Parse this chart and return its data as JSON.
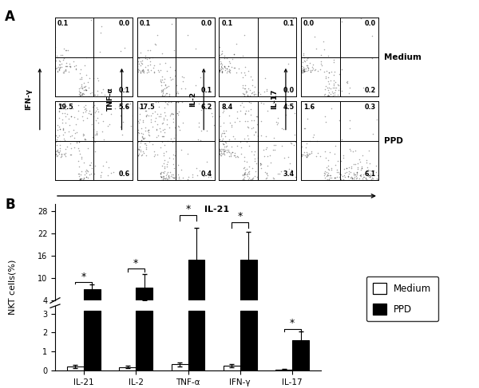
{
  "panel_A": {
    "rows": [
      "Medium",
      "PPD"
    ],
    "cols": [
      "IFN-y",
      "TNF-a",
      "IL-2",
      "IL-17"
    ],
    "col_ylabels": [
      "IFN-γ",
      "TNF-α",
      "IL-2",
      "IL-17"
    ],
    "quadrant_values": {
      "Medium": {
        "IFN-y": [
          [
            "0.1",
            "0.0"
          ],
          [
            "",
            "0.1"
          ]
        ],
        "TNF-a": [
          [
            "0.1",
            "0.0"
          ],
          [
            "",
            "0.1"
          ]
        ],
        "IL-2": [
          [
            "0.1",
            "0.1"
          ],
          [
            "",
            "0.0"
          ]
        ],
        "IL-17": [
          [
            "0.0",
            "0.0"
          ],
          [
            "",
            "0.2"
          ]
        ]
      },
      "PPD": {
        "IFN-y": [
          [
            "19.5",
            "5.6"
          ],
          [
            "",
            "0.6"
          ]
        ],
        "TNF-a": [
          [
            "17.5",
            "6.2"
          ],
          [
            "",
            "0.4"
          ]
        ],
        "IL-2": [
          [
            "8.4",
            "4.5"
          ],
          [
            "",
            "3.4"
          ]
        ],
        "IL-17": [
          [
            "1.6",
            "0.3"
          ],
          [
            "",
            "6.1"
          ]
        ]
      }
    }
  },
  "panel_B": {
    "categories": [
      "IL-21",
      "IL-2",
      "TNF-α",
      "IFN-γ",
      "IL-17"
    ],
    "medium_values": [
      0.22,
      0.18,
      0.32,
      0.25,
      0.05
    ],
    "medium_errors": [
      0.07,
      0.06,
      0.1,
      0.08,
      0.02
    ],
    "ppd_values": [
      7.0,
      7.5,
      15.0,
      15.0,
      1.6
    ],
    "ppd_errors": [
      1.2,
      3.5,
      8.5,
      7.5,
      0.45
    ],
    "ylabel": "NKT cells(%)",
    "yticks_upper": [
      4,
      10,
      16,
      22,
      28
    ],
    "yticks_lower": [
      0,
      1,
      2,
      3
    ],
    "bar_width": 0.32,
    "star_y_upper": [
      9.0,
      12.5,
      27.0,
      25.0,
      null
    ],
    "star_y_lower": [
      null,
      null,
      null,
      null,
      2.2
    ]
  }
}
